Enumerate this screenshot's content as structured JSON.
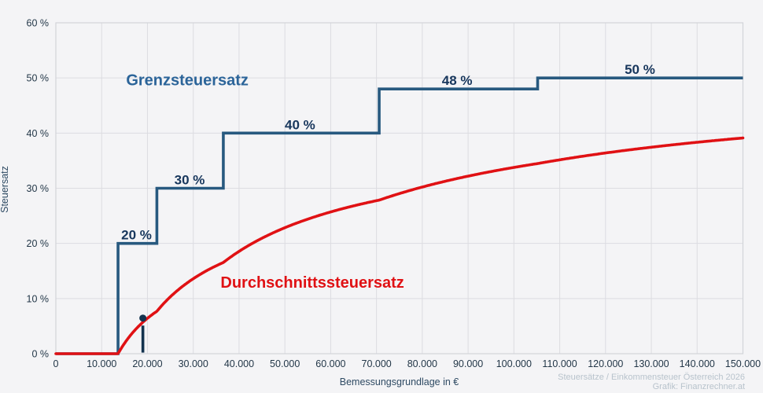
{
  "page": {
    "background": "#f4f4f6"
  },
  "axes": {
    "x": {
      "title": "Bemessungsgrundlage in €",
      "min": 0,
      "max": 150000,
      "tick_step": 10000,
      "tick_labels": [
        "0",
        "10.000",
        "20.000",
        "30.000",
        "40.000",
        "50.000",
        "60.000",
        "70.000",
        "80.000",
        "90.000",
        "100.000",
        "110.000",
        "120.000",
        "130.000",
        "140.000",
        "150.000"
      ]
    },
    "y": {
      "title": "Steuersatz",
      "min": 0,
      "max": 60,
      "tick_step": 10,
      "tick_labels": [
        "0 %",
        "10 %",
        "20 %",
        "30 %",
        "40 %",
        "50 %",
        "60 %"
      ]
    }
  },
  "chart_data": {
    "type": "line",
    "title": "",
    "xlabel": "Bemessungsgrundlage in €",
    "ylabel": "Steuersatz",
    "xlim": [
      0,
      150000
    ],
    "ylim": [
      0,
      60
    ],
    "grid": true,
    "colors": {
      "marginal_line": "#27597f",
      "average_line": "#e01114",
      "step_label": "#17365c",
      "tick_label": "#233748",
      "grenz_label": "#2b6499",
      "marker": "#13334f",
      "gridline": "#dcdce1",
      "plot_border": "#d2d4d9"
    },
    "series": [
      {
        "name": "Grenzsteuersatz",
        "type": "step",
        "steps": [
          {
            "from": 0,
            "to": 13577,
            "rate": 0
          },
          {
            "from": 13577,
            "to": 22055,
            "rate": 20
          },
          {
            "from": 22055,
            "to": 36563,
            "rate": 30
          },
          {
            "from": 36563,
            "to": 70587,
            "rate": 40
          },
          {
            "from": 70587,
            "to": 105181,
            "rate": 48
          },
          {
            "from": 105181,
            "to": 150000,
            "rate": 50
          }
        ],
        "step_labels": [
          {
            "text": "20 %",
            "x": 17600,
            "rate": 20
          },
          {
            "text": "30 %",
            "x": 29200,
            "rate": 30
          },
          {
            "text": "40 %",
            "x": 53300,
            "rate": 40
          },
          {
            "text": "48 %",
            "x": 87600,
            "rate": 48
          },
          {
            "text": "50 %",
            "x": 127500,
            "rate": 50
          }
        ],
        "series_label": {
          "text": "Grenzsteuersatz",
          "x": 28700,
          "rate": 49.7
        }
      },
      {
        "name": "Durchschnittssteuersatz",
        "type": "average_curve_of_steps",
        "series_label": {
          "text": "Durchschnittssteuersatz",
          "x": 56000,
          "rate": 13.0
        },
        "avg_rate_examples": {
          "x": [
            20000,
            30000,
            40000,
            50000,
            60000,
            70000,
            80000,
            90000,
            100000,
            110000,
            120000,
            130000,
            140000,
            150000
          ],
          "avg": [
            6.4,
            13.6,
            18.6,
            22.8,
            25.7,
            27.7,
            30.2,
            32.2,
            33.8,
            35.2,
            36.4,
            37.4,
            38.3,
            39.1
          ]
        }
      }
    ],
    "marker": {
      "x": 19000,
      "dot_rate": 6.45,
      "stem_top_rate": 5.1,
      "stem_bottom_rate": 0.2
    },
    "attribution": [
      "Steuersätze / Einkommensteuer Österreich 2026",
      "Grafik: Finanzrechner.at"
    ]
  }
}
